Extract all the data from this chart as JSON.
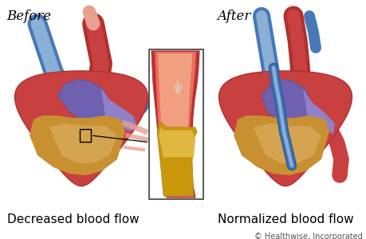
{
  "title_before": "Before",
  "title_after": "After",
  "label_before": "Decreased blood flow",
  "label_after": "Normalized blood flow",
  "copyright": "© Healthwise, Incorporated",
  "bg_color": "#ffffff",
  "title_fontsize": 12,
  "label_fontsize": 11,
  "copyright_fontsize": 7,
  "fig_width": 4.6,
  "fig_height": 3.0,
  "dpi": 100,
  "heart_red_dark": "#b03030",
  "heart_red_mid": "#c84040",
  "heart_red_light": "#d86060",
  "heart_pink": "#e8a090",
  "heart_purple_dark": "#5050a0",
  "heart_purple_mid": "#7060b0",
  "heart_purple_light": "#9080c8",
  "heart_yellow_dark": "#b08020",
  "heart_yellow_mid": "#c89030",
  "heart_yellow_light": "#d8a840",
  "heart_tan": "#e0b870",
  "vessel_blue_dark": "#3060a0",
  "vessel_blue_mid": "#4878b8",
  "vessel_blue_light": "#8ab0d8",
  "skin_color": "#f0c8a0",
  "artery_wall": "#c03030",
  "artery_inner": "#e87060",
  "artery_lumen": "#f0a080",
  "plaque_color": "#c8980a",
  "plaque_light": "#e0b840",
  "arrow_color": "#e8c0b0",
  "inset_border": "#404040"
}
